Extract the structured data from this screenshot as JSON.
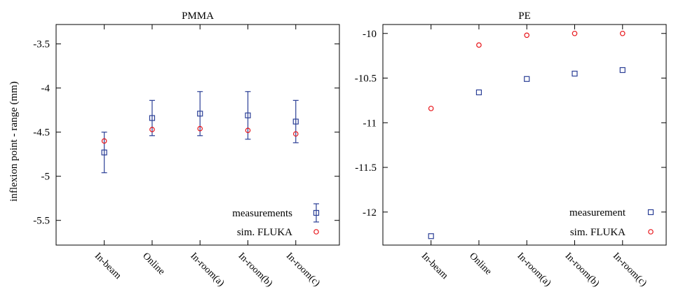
{
  "figure": {
    "ylabel": "inflexion point - range (mm)"
  },
  "chart_data": [
    {
      "type": "scatter",
      "title": "PMMA",
      "xlabel": "",
      "ylabel": "inflexion point - range (mm)",
      "categories": [
        "In-beam",
        "Online",
        "In-room(a)",
        "In-room(b)",
        "In-room(c)"
      ],
      "ylim": [
        -5.78,
        -3.28
      ],
      "yticks": [
        "-3.5",
        "-4",
        "-4.5",
        "-5",
        "-5.5"
      ],
      "ytick_values": [
        -3.5,
        -4,
        -4.5,
        -5,
        -5.5
      ],
      "grid": false,
      "legend_position": "bottom-right",
      "series": [
        {
          "name": "measurements",
          "marker": "square",
          "color": "#2b3f96",
          "values": [
            -4.73,
            -4.34,
            -4.29,
            -4.31,
            -4.38
          ],
          "error": [
            0.23,
            0.2,
            0.25,
            0.27,
            0.24
          ]
        },
        {
          "name": "sim. FLUKA",
          "marker": "circle",
          "color": "#e8161b",
          "values": [
            -4.6,
            -4.47,
            -4.46,
            -4.48,
            -4.52
          ]
        }
      ]
    },
    {
      "type": "scatter",
      "title": "PE",
      "xlabel": "",
      "ylabel": "",
      "categories": [
        "In-beam",
        "Online",
        "In-room(a)",
        "In-room(b)",
        "In-room(c)"
      ],
      "ylim": [
        -12.37,
        -9.9
      ],
      "yticks": [
        "-10",
        "-10.5",
        "-11",
        "-11.5",
        "-12"
      ],
      "ytick_values": [
        -10,
        -10.5,
        -11,
        -11.5,
        -12
      ],
      "grid": false,
      "legend_position": "bottom-right",
      "series": [
        {
          "name": "measurement",
          "marker": "square",
          "color": "#2b3f96",
          "values": [
            -12.27,
            -10.66,
            -10.51,
            -10.45,
            -10.41
          ]
        },
        {
          "name": "sim. FLUKA",
          "marker": "circle",
          "color": "#e8161b",
          "values": [
            -10.84,
            -10.13,
            -10.02,
            -10.0,
            -10.0
          ]
        }
      ]
    }
  ]
}
